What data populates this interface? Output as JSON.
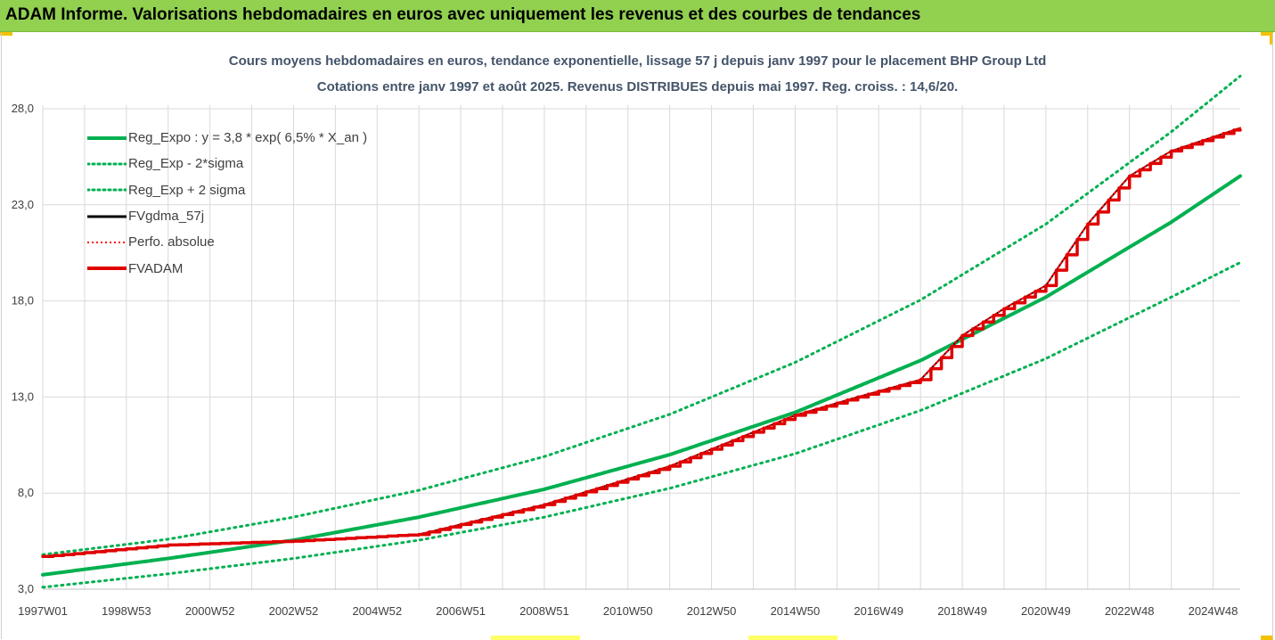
{
  "banner": {
    "title": "ADAM Informe. Valorisations hebdomadaires en euros avec uniquement les revenus et des courbes de tendances"
  },
  "colors": {
    "banner_bg": "#92d050",
    "trend": "#00b050",
    "smooth": "#000000",
    "perf": "#ff0000",
    "adam": "#e00000",
    "title_text": "#44546a",
    "grid": "#d9d9d9",
    "accent_corner": "#f2c200"
  },
  "chart_data": {
    "type": "line",
    "title": "Cours moyens hebdomadaires en euros, tendance exponentielle, lissage 57 j depuis janv 1997 pour le placement BHP Group Ltd",
    "subtitle": "Cotations entre janv 1997 et août 2025.  Revenus DISTRIBUES depuis mai 1997. Reg. croiss. : 14,6/20.",
    "xlabel": "",
    "ylabel": "",
    "ylim": [
      3.0,
      28.0
    ],
    "yticks": [
      "28,0",
      "23,0",
      "18,0",
      "13,0",
      "8,0",
      "3,0"
    ],
    "yticks_values": [
      28,
      23,
      18,
      13,
      8,
      3
    ],
    "xlim": [
      1997.0,
      2025.65
    ],
    "xtick_labels": [
      "1997W01",
      "1998W53",
      "2000W52",
      "2002W52",
      "2004W52",
      "2006W51",
      "2008W51",
      "2010W50",
      "2012W50",
      "2014W50",
      "2016W49",
      "2018W49",
      "2020W49",
      "2022W48",
      "2024W48"
    ],
    "xtick_positions": [
      1997.0,
      1999.0,
      2001.0,
      2003.0,
      2005.0,
      2007.0,
      2009.0,
      2011.0,
      2013.0,
      2015.0,
      2017.0,
      2019.0,
      2021.0,
      2023.0,
      2025.0
    ],
    "grid": true,
    "legend_position": "top-left",
    "series": [
      {
        "name": "Reg_Expo : y = 3,8 * exp( 6,5% *  X_an )",
        "style": "solid-thick",
        "x": [
          1997.0,
          2000.0,
          2003.0,
          2006.0,
          2009.0,
          2012.0,
          2015.0,
          2018.0,
          2021.0,
          2024.0,
          2025.65
        ],
        "values": [
          3.75,
          4.6,
          5.55,
          6.75,
          8.2,
          10.0,
          12.2,
          14.9,
          18.2,
          22.1,
          24.5
        ]
      },
      {
        "name": "Reg_Exp - 2*sigma",
        "style": "dotted",
        "x": [
          1997.0,
          2000.0,
          2003.0,
          2006.0,
          2009.0,
          2012.0,
          2015.0,
          2018.0,
          2021.0,
          2024.0,
          2025.65
        ],
        "values": [
          3.1,
          3.8,
          4.6,
          5.55,
          6.75,
          8.25,
          10.05,
          12.3,
          15.0,
          18.2,
          20.0
        ]
      },
      {
        "name": "Reg_Exp + 2 sigma",
        "style": "dotted",
        "x": [
          1997.0,
          2000.0,
          2003.0,
          2006.0,
          2009.0,
          2012.0,
          2015.0,
          2018.0,
          2021.0,
          2024.0,
          2025.65
        ],
        "values": [
          4.8,
          5.6,
          6.75,
          8.15,
          9.9,
          12.1,
          14.8,
          18.05,
          22.0,
          26.8,
          29.7
        ]
      },
      {
        "name": "FVgdma_57j",
        "style": "solid",
        "x": [
          1997.0,
          2000.0,
          2003.0,
          2006.0,
          2009.0,
          2012.0,
          2015.0,
          2016.5,
          2018.0,
          2019.0,
          2020.0,
          2021.0,
          2022.0,
          2023.0,
          2024.0,
          2025.65
        ],
        "values": [
          4.7,
          5.3,
          5.5,
          5.85,
          7.4,
          9.4,
          12.05,
          13.0,
          13.9,
          16.2,
          17.6,
          18.8,
          22.0,
          24.5,
          25.8,
          27.0
        ]
      },
      {
        "name": "Perfo. absolue",
        "style": "dotted",
        "x": [
          1997.0,
          2000.0,
          2003.0,
          2006.0,
          2009.0,
          2012.0,
          2015.0,
          2016.5,
          2018.0,
          2019.0,
          2020.0,
          2021.0,
          2022.0,
          2023.0,
          2024.0,
          2025.65
        ],
        "values": [
          4.7,
          5.3,
          5.5,
          5.85,
          7.4,
          9.4,
          12.05,
          13.0,
          13.9,
          16.2,
          17.6,
          18.8,
          22.0,
          24.5,
          25.8,
          27.0
        ]
      },
      {
        "name": "FVADAM",
        "style": "steps-thick",
        "x": [
          1997.0,
          2000.0,
          2003.0,
          2006.0,
          2009.0,
          2012.0,
          2015.0,
          2016.5,
          2018.0,
          2019.0,
          2020.0,
          2021.0,
          2022.0,
          2023.0,
          2024.0,
          2025.65
        ],
        "values": [
          4.7,
          5.3,
          5.5,
          5.85,
          7.4,
          9.4,
          12.05,
          13.0,
          13.9,
          16.2,
          17.6,
          18.8,
          22.0,
          24.5,
          25.8,
          27.0
        ]
      }
    ]
  }
}
